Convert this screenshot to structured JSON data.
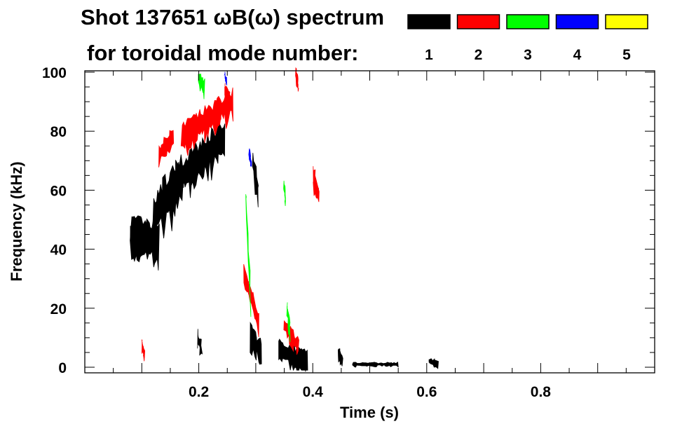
{
  "chart_data": {
    "type": "heatmap",
    "title_line1": "Shot 137651 ωB(ω) spectrum",
    "title_line2": "for toroidal mode number:",
    "xlabel": "Time (s)",
    "ylabel": "Frequency (kHz)",
    "xlim": [
      0,
      1.0
    ],
    "ylim": [
      -2,
      100
    ],
    "x_ticks": [
      0.2,
      0.4,
      0.6,
      0.8
    ],
    "x_tick_labels": [
      "0.2",
      "0.4",
      "0.6",
      "0.8"
    ],
    "y_ticks": [
      0,
      20,
      40,
      60,
      80,
      100
    ],
    "y_tick_labels": [
      "0",
      "20",
      "40",
      "60",
      "80",
      "100"
    ],
    "legend": [
      {
        "label": "1",
        "color": "#000000"
      },
      {
        "label": "2",
        "color": "#ff0000"
      },
      {
        "label": "3",
        "color": "#00ff00"
      },
      {
        "label": "4",
        "color": "#0000ff"
      },
      {
        "label": "5",
        "color": "#ffff00"
      }
    ],
    "features": [
      {
        "mode": 1,
        "t": [
          0.08,
          0.13
        ],
        "f": [
          45,
          42
        ],
        "bw": 10
      },
      {
        "mode": 1,
        "t": [
          0.12,
          0.165
        ],
        "f": [
          52,
          62
        ],
        "bw": 12
      },
      {
        "mode": 1,
        "t": [
          0.16,
          0.245
        ],
        "f": [
          63,
          78
        ],
        "bw": 10
      },
      {
        "mode": 1,
        "t": [
          0.295,
          0.305
        ],
        "f": [
          70,
          58
        ],
        "bw": 6
      },
      {
        "mode": 1,
        "t": [
          0.29,
          0.31
        ],
        "f": [
          11,
          5
        ],
        "bw": 6
      },
      {
        "mode": 1,
        "t": [
          0.34,
          0.39
        ],
        "f": [
          6,
          1
        ],
        "bw": 7
      },
      {
        "mode": 1,
        "t": [
          0.198,
          0.205
        ],
        "f": [
          10,
          6
        ],
        "bw": 4
      },
      {
        "mode": 1,
        "t": [
          0.445,
          0.452
        ],
        "f": [
          5,
          2
        ],
        "bw": 3
      },
      {
        "mode": 1,
        "t": [
          0.47,
          0.55
        ],
        "f": [
          1,
          1
        ],
        "bw": 1
      },
      {
        "mode": 1,
        "t": [
          0.605,
          0.62
        ],
        "f": [
          2,
          1
        ],
        "bw": 2
      },
      {
        "mode": 2,
        "t": [
          0.13,
          0.155
        ],
        "f": [
          72,
          78
        ],
        "bw": 5
      },
      {
        "mode": 2,
        "t": [
          0.17,
          0.26
        ],
        "f": [
          78,
          90
        ],
        "bw": 7
      },
      {
        "mode": 2,
        "t": [
          0.245,
          0.255
        ],
        "f": [
          94,
          90
        ],
        "bw": 4
      },
      {
        "mode": 2,
        "t": [
          0.28,
          0.305
        ],
        "f": [
          32,
          15
        ],
        "bw": 5
      },
      {
        "mode": 2,
        "t": [
          0.4,
          0.41
        ],
        "f": [
          66,
          58
        ],
        "bw": 6
      },
      {
        "mode": 2,
        "t": [
          0.37,
          0.375
        ],
        "f": [
          100,
          95
        ],
        "bw": 3
      },
      {
        "mode": 2,
        "t": [
          0.35,
          0.375
        ],
        "f": [
          14,
          7
        ],
        "bw": 4
      },
      {
        "mode": 2,
        "t": [
          0.1,
          0.105
        ],
        "f": [
          8,
          4
        ],
        "bw": 3
      },
      {
        "mode": 3,
        "t": [
          0.2,
          0.21
        ],
        "f": [
          98,
          95
        ],
        "bw": 4
      },
      {
        "mode": 3,
        "t": [
          0.283,
          0.292
        ],
        "f": [
          58,
          18
        ],
        "bw": 2
      },
      {
        "mode": 3,
        "t": [
          0.355,
          0.36
        ],
        "f": [
          20,
          12
        ],
        "bw": 3
      },
      {
        "mode": 3,
        "t": [
          0.35,
          0.352
        ],
        "f": [
          62,
          56
        ],
        "bw": 2
      },
      {
        "mode": 4,
        "t": [
          0.288,
          0.292
        ],
        "f": [
          73,
          69
        ],
        "bw": 2
      },
      {
        "mode": 4,
        "t": [
          0.245,
          0.248
        ],
        "f": [
          99,
          97
        ],
        "bw": 2
      }
    ]
  }
}
